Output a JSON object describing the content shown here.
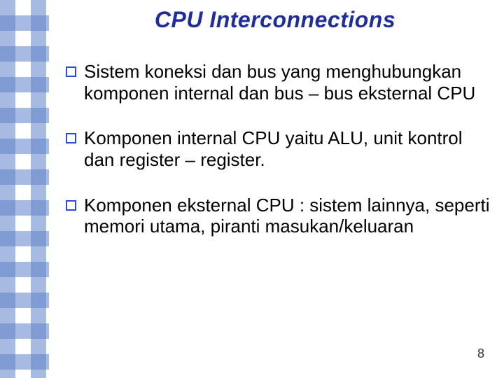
{
  "title": {
    "text": "CPU Interconnections",
    "color": "#1f2e9a"
  },
  "bullets": [
    {
      "text": "Sistem koneksi dan bus yang menghubungkan komponen internal dan bus – bus eksternal CPU",
      "bullet_color": "#2a4bd7"
    },
    {
      "text": "Komponen internal CPU yaitu ALU, unit kontrol dan register – register.",
      "bullet_color": "#2a4bd7"
    },
    {
      "text": "Komponen eksternal CPU : sistem lainnya, seperti memori utama, piranti masukan/keluaran",
      "bullet_color": "#2a4bd7"
    }
  ],
  "body_color": "#000000",
  "page_number": "8"
}
